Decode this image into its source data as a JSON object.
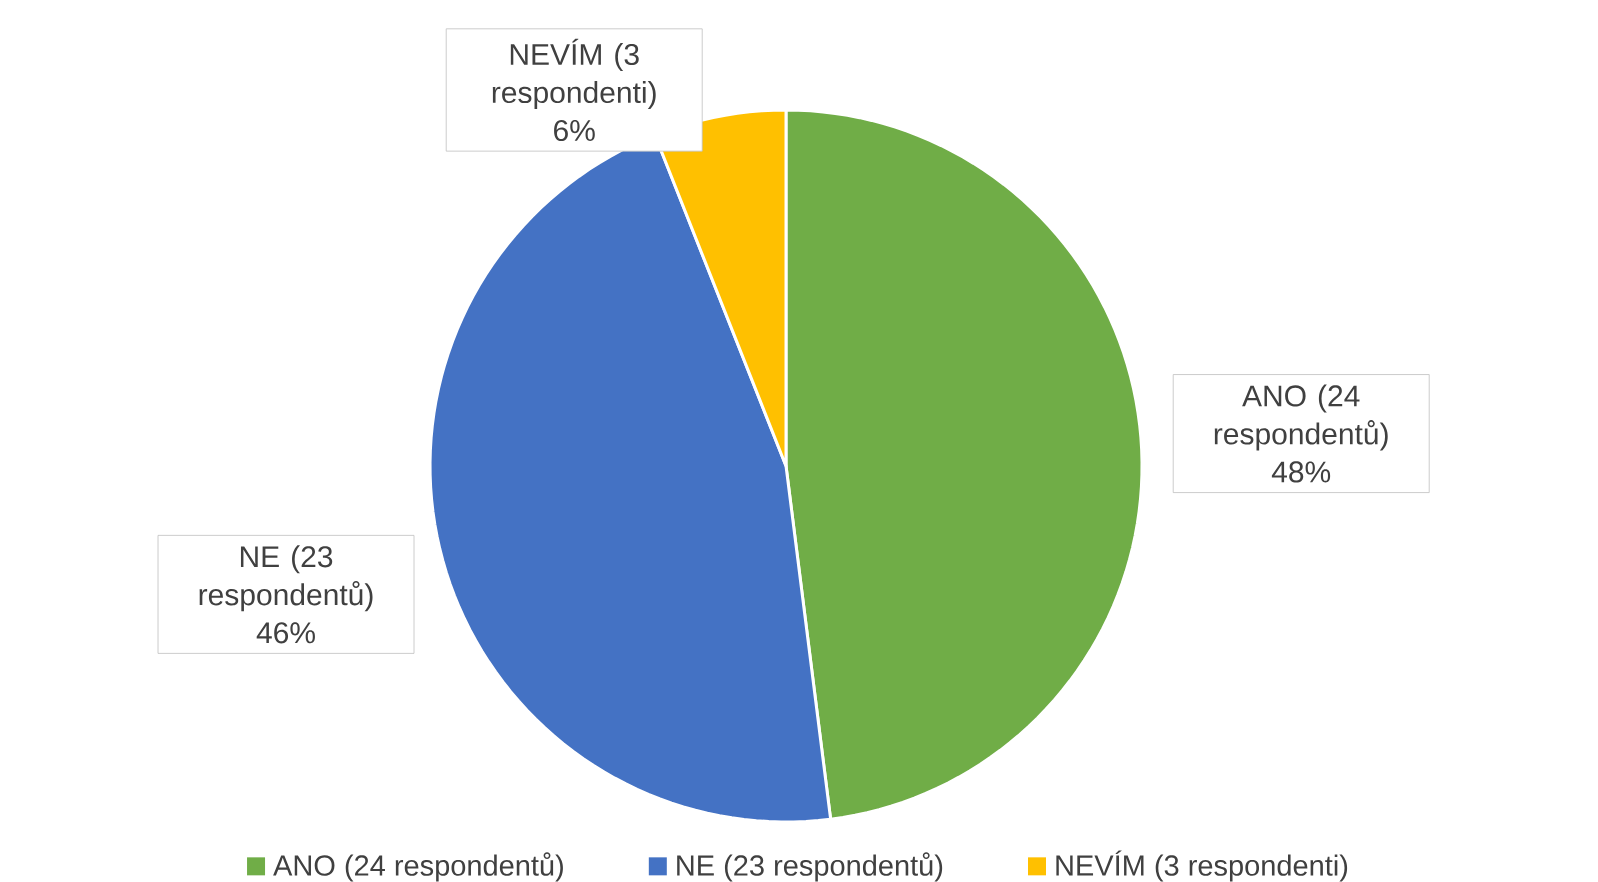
{
  "chart_data": {
    "type": "pie",
    "categories": [
      "ANO (24 respondentů)",
      "NE (23 respondentů)",
      "NEVÍM (3 respondenti)"
    ],
    "values": [
      48,
      46,
      6
    ],
    "value_labels": [
      "48%",
      "46%",
      "6%"
    ],
    "colors": [
      "#70ad47",
      "#4472c4",
      "#ffc000"
    ],
    "legend": "bottom"
  }
}
